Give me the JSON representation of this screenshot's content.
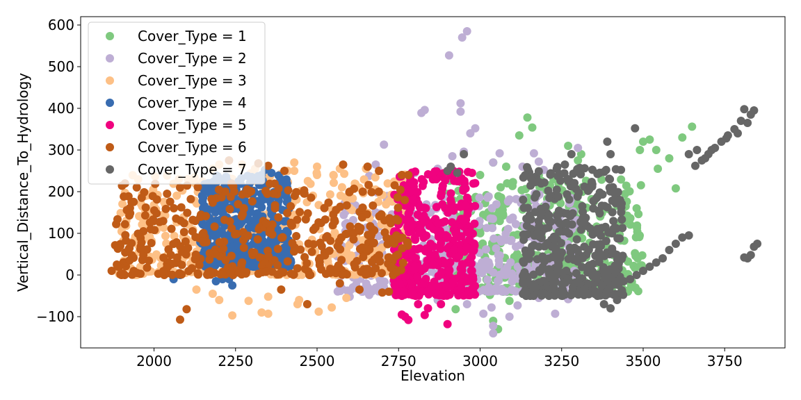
{
  "chart_data": {
    "type": "scatter",
    "title": "",
    "xlabel": "Elevation",
    "ylabel": "Vertical_Distance_To_Hydrology",
    "xlim": [
      1775,
      3935
    ],
    "ylim": [
      -175,
      620
    ],
    "xticks": [
      2000,
      2250,
      2500,
      2750,
      3000,
      3250,
      3500,
      3750
    ],
    "yticks": [
      -100,
      0,
      100,
      200,
      300,
      400,
      500,
      600
    ],
    "xtick_labels": [
      "2000",
      "2250",
      "2500",
      "2750",
      "3000",
      "3250",
      "3500",
      "3750"
    ],
    "ytick_labels": [
      "−100",
      "0",
      "100",
      "200",
      "300",
      "400",
      "500",
      "600"
    ],
    "grid": false,
    "legend_position": "top-left",
    "series": [
      {
        "name": "Cover_Type = 1",
        "color": "#7fc97f",
        "core": {
          "x": [
            2880,
            3500
          ],
          "y": [
            -40,
            230
          ]
        },
        "points": [
          [
            3650,
            356
          ],
          [
            3620,
            330
          ],
          [
            3520,
            325
          ],
          [
            3500,
            320
          ],
          [
            3540,
            300
          ],
          [
            3490,
            300
          ],
          [
            3270,
            310
          ],
          [
            3310,
            290
          ],
          [
            3145,
            378
          ],
          [
            3160,
            354
          ],
          [
            3180,
            240
          ],
          [
            3225,
            230
          ],
          [
            3300,
            275
          ],
          [
            3580,
            280
          ],
          [
            3545,
            255
          ],
          [
            3600,
            208
          ],
          [
            3120,
            335
          ],
          [
            3080,
            260
          ],
          [
            3040,
            270
          ],
          [
            3000,
            240
          ],
          [
            3055,
            -130
          ],
          [
            3040,
            -110
          ],
          [
            2925,
            -82
          ],
          [
            3090,
            -62
          ],
          [
            3030,
            -48
          ],
          [
            3410,
            100
          ],
          [
            3480,
            160
          ]
        ]
      },
      {
        "name": "Cover_Type = 2",
        "color": "#beaed4",
        "core": {
          "x": [
            2560,
            3300
          ],
          "y": [
            -40,
            200
          ]
        },
        "points": [
          [
            2960,
            585
          ],
          [
            2945,
            570
          ],
          [
            2905,
            527
          ],
          [
            2940,
            412
          ],
          [
            2940,
            392
          ],
          [
            2830,
            396
          ],
          [
            2820,
            389
          ],
          [
            2985,
            352
          ],
          [
            2970,
            340
          ],
          [
            2705,
            313
          ],
          [
            2915,
            285
          ],
          [
            2950,
            296
          ],
          [
            3060,
            292
          ],
          [
            3040,
            270
          ],
          [
            3165,
            292
          ],
          [
            3180,
            272
          ],
          [
            3300,
            305
          ],
          [
            3130,
            260
          ],
          [
            3195,
            252
          ],
          [
            2800,
            245
          ],
          [
            2870,
            255
          ],
          [
            2680,
            265
          ],
          [
            2660,
            238
          ],
          [
            3040,
            -140
          ],
          [
            3040,
            -122
          ],
          [
            3230,
            -93
          ],
          [
            3010,
            -93
          ],
          [
            3035,
            -78
          ],
          [
            3115,
            -73
          ],
          [
            3090,
            -100
          ],
          [
            3180,
            -55
          ],
          [
            3270,
            -58
          ],
          [
            2960,
            -70
          ],
          [
            2870,
            -60
          ],
          [
            2660,
            -48
          ],
          [
            2600,
            -52
          ]
        ]
      },
      {
        "name": "Cover_Type = 3",
        "color": "#fdc086",
        "core": {
          "x": [
            1890,
            2800
          ],
          "y": [
            0,
            245
          ]
        },
        "points": [
          [
            2430,
            270
          ],
          [
            2500,
            260
          ],
          [
            2500,
            240
          ],
          [
            2570,
            255
          ],
          [
            2310,
            255
          ],
          [
            2200,
            265
          ],
          [
            2180,
            255
          ],
          [
            2410,
            250
          ],
          [
            2430,
            250
          ],
          [
            2650,
            255
          ],
          [
            2550,
            240
          ],
          [
            2270,
            265
          ],
          [
            2120,
            225
          ],
          [
            2290,
            -62
          ],
          [
            2240,
            -97
          ],
          [
            2330,
            -90
          ],
          [
            2350,
            -93
          ],
          [
            2350,
            -52
          ],
          [
            2440,
            -70
          ],
          [
            2505,
            -88
          ],
          [
            2545,
            -78
          ],
          [
            2590,
            -55
          ],
          [
            2445,
            -60
          ],
          [
            2200,
            -60
          ],
          [
            2180,
            -45
          ],
          [
            2130,
            -35
          ]
        ]
      },
      {
        "name": "Cover_Type = 4",
        "color": "#386cb0",
        "core": {
          "x": [
            2140,
            2420
          ],
          "y": [
            20,
            240
          ]
        },
        "points": [
          [
            2340,
            252
          ],
          [
            2360,
            245
          ],
          [
            2330,
            240
          ],
          [
            2300,
            235
          ],
          [
            2230,
            -10
          ],
          [
            2240,
            -25
          ],
          [
            2210,
            -10
          ],
          [
            2190,
            -15
          ],
          [
            2060,
            -10
          ],
          [
            2080,
            0
          ]
        ]
      },
      {
        "name": "Cover_Type = 5",
        "color": "#f0027f",
        "core": {
          "x": [
            2735,
            2985
          ],
          "y": [
            -50,
            250
          ]
        },
        "points": [
          [
            2900,
            -118
          ],
          [
            2770,
            -100
          ],
          [
            2780,
            -108
          ],
          [
            2830,
            -96
          ],
          [
            2760,
            -95
          ],
          [
            2840,
            -80
          ],
          [
            2880,
            -70
          ],
          [
            2810,
            -70
          ],
          [
            2975,
            245
          ],
          [
            2905,
            250
          ],
          [
            2930,
            225
          ]
        ]
      },
      {
        "name": "Cover_Type = 6",
        "color": "#bf5b17",
        "core": {
          "x": [
            1880,
            2780
          ],
          "y": [
            0,
            220
          ]
        },
        "points": [
          [
            2080,
            -107
          ],
          [
            2100,
            -82
          ],
          [
            2230,
            275
          ],
          [
            2320,
            268
          ],
          [
            2350,
            262
          ],
          [
            2400,
            250
          ],
          [
            2580,
            265
          ],
          [
            2690,
            250
          ],
          [
            2760,
            240
          ],
          [
            2780,
            240
          ],
          [
            2655,
            260
          ],
          [
            2470,
            -70
          ],
          [
            2390,
            -35
          ],
          [
            2630,
            -35
          ],
          [
            2700,
            -42
          ],
          [
            2720,
            -40
          ],
          [
            2570,
            -20
          ],
          [
            1870,
            10
          ],
          [
            1890,
            20
          ],
          [
            1925,
            35
          ],
          [
            1990,
            110
          ],
          [
            2040,
            195
          ],
          [
            2080,
            210
          ],
          [
            2600,
            200
          ],
          [
            2640,
            200
          ]
        ]
      },
      {
        "name": "Cover_Type = 7",
        "color": "#666666",
        "core": {
          "x": [
            3130,
            3440
          ],
          "y": [
            -50,
            260
          ]
        },
        "points": [
          [
            3810,
            398
          ],
          [
            3840,
            395
          ],
          [
            3830,
            385
          ],
          [
            3800,
            370
          ],
          [
            3780,
            350
          ],
          [
            3760,
            335
          ],
          [
            3740,
            320
          ],
          [
            3720,
            305
          ],
          [
            3700,
            290
          ],
          [
            3680,
            275
          ],
          [
            3660,
            262
          ],
          [
            3790,
            340
          ],
          [
            3820,
            365
          ],
          [
            3755,
            328
          ],
          [
            3710,
            300
          ],
          [
            3690,
            280
          ],
          [
            3665,
            300
          ],
          [
            3640,
            290
          ],
          [
            3475,
            352
          ],
          [
            3390,
            320
          ],
          [
            3400,
            290
          ],
          [
            3280,
            290
          ],
          [
            3260,
            265
          ],
          [
            3300,
            255
          ],
          [
            2910,
            260
          ],
          [
            2930,
            245
          ],
          [
            2950,
            290
          ],
          [
            2900,
            250
          ],
          [
            3820,
            40
          ],
          [
            3830,
            48
          ],
          [
            3850,
            75
          ],
          [
            3840,
            68
          ],
          [
            3810,
            42
          ],
          [
            3640,
            95
          ],
          [
            3620,
            90
          ],
          [
            3600,
            75
          ],
          [
            3580,
            60
          ],
          [
            3560,
            40
          ],
          [
            3540,
            30
          ],
          [
            3520,
            20
          ],
          [
            3500,
            10
          ],
          [
            3480,
            0
          ],
          [
            3460,
            -10
          ],
          [
            3440,
            -15
          ],
          [
            3420,
            -60
          ],
          [
            3400,
            -80
          ],
          [
            3380,
            -70
          ],
          [
            3360,
            -50
          ],
          [
            3140,
            -45
          ],
          [
            3170,
            -30
          ],
          [
            3255,
            -40
          ]
        ]
      }
    ]
  }
}
